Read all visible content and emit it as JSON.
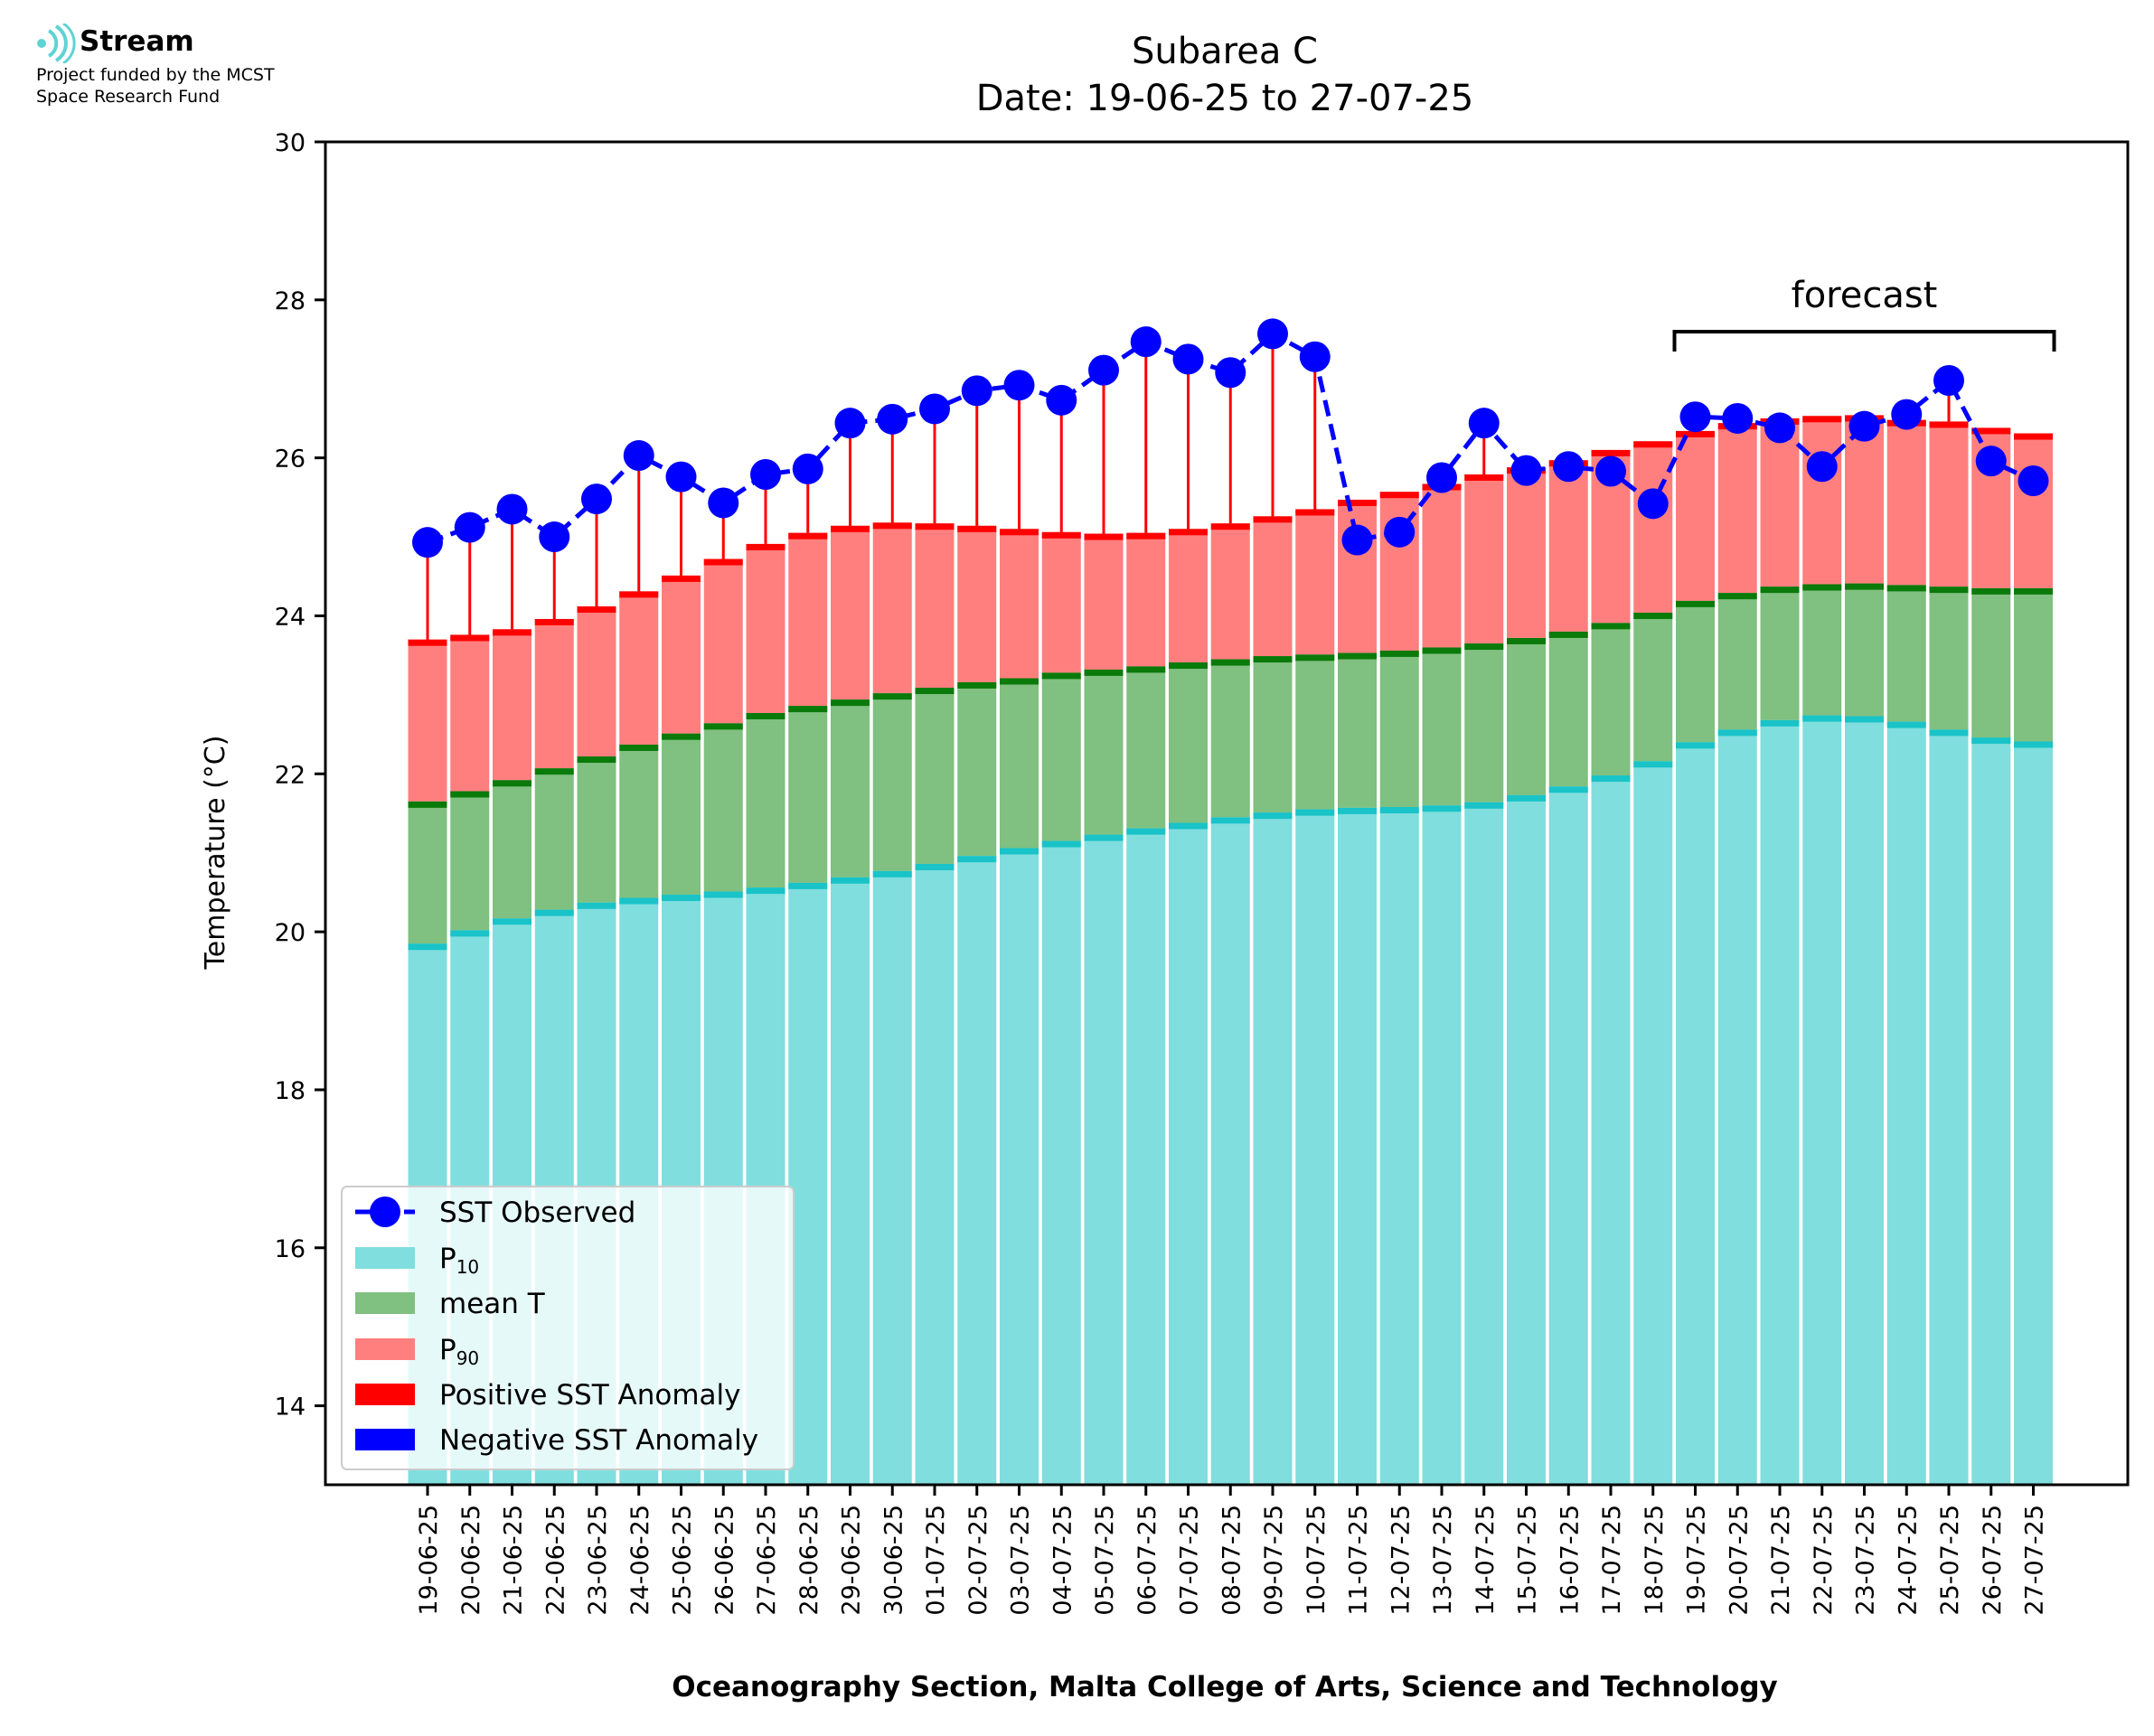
{
  "logo": {
    "name": "Stream",
    "line1": "Project funded by the MCST",
    "line2": "Space Research Fund",
    "icon": "stream-waves-icon"
  },
  "colors": {
    "p10": "#80dede",
    "p10_cap": "#19c3c8",
    "mean": "#80c080",
    "mean_cap": "#0a7a0a",
    "p90": "#ff7f7f",
    "p90_cap": "#ff0000",
    "positive_anomaly": "#ff0000",
    "negative_anomaly": "#0000ff",
    "sst": "#0000ff"
  },
  "chart_data": {
    "type": "bar",
    "title": "Subarea C",
    "subtitle": "Date: 19-06-25 to 27-07-25",
    "xlabel": "Oceanography Section, Malta College of Arts, Science and Technology",
    "ylabel": "Temperature (°C)",
    "ylim": [
      13,
      30
    ],
    "yticks": [
      14,
      16,
      18,
      20,
      22,
      24,
      26,
      28,
      30
    ],
    "grid": false,
    "legend_position": "lower-left",
    "categories": [
      "19-06-25",
      "20-06-25",
      "21-06-25",
      "22-06-25",
      "23-06-25",
      "24-06-25",
      "25-06-25",
      "26-06-25",
      "27-06-25",
      "28-06-25",
      "29-06-25",
      "30-06-25",
      "01-07-25",
      "02-07-25",
      "03-07-25",
      "04-07-25",
      "05-07-25",
      "06-07-25",
      "07-07-25",
      "08-07-25",
      "09-07-25",
      "10-07-25",
      "11-07-25",
      "12-07-25",
      "13-07-25",
      "14-07-25",
      "15-07-25",
      "16-07-25",
      "17-07-25",
      "18-07-25",
      "19-07-25",
      "20-07-25",
      "21-07-25",
      "22-07-25",
      "23-07-25",
      "24-07-25",
      "25-07-25",
      "26-07-25",
      "27-07-25"
    ],
    "series": [
      {
        "name": "P10",
        "values": [
          19.85,
          20.02,
          20.17,
          20.28,
          20.37,
          20.43,
          20.47,
          20.51,
          20.56,
          20.62,
          20.69,
          20.77,
          20.86,
          20.96,
          21.06,
          21.15,
          21.23,
          21.31,
          21.38,
          21.45,
          21.51,
          21.55,
          21.57,
          21.58,
          21.6,
          21.64,
          21.73,
          21.84,
          21.98,
          22.16,
          22.4,
          22.56,
          22.68,
          22.74,
          22.73,
          22.66,
          22.56,
          22.46,
          22.41
        ]
      },
      {
        "name": "mean T",
        "values": [
          21.65,
          21.78,
          21.92,
          22.07,
          22.22,
          22.37,
          22.51,
          22.64,
          22.77,
          22.86,
          22.94,
          23.02,
          23.09,
          23.16,
          23.21,
          23.28,
          23.32,
          23.36,
          23.41,
          23.45,
          23.49,
          23.51,
          23.53,
          23.56,
          23.6,
          23.65,
          23.72,
          23.8,
          23.91,
          24.04,
          24.19,
          24.29,
          24.37,
          24.4,
          24.41,
          24.39,
          24.37,
          24.35,
          24.35
        ]
      },
      {
        "name": "P90",
        "values": [
          23.7,
          23.76,
          23.83,
          23.96,
          24.12,
          24.31,
          24.51,
          24.72,
          24.91,
          25.05,
          25.14,
          25.18,
          25.17,
          25.14,
          25.1,
          25.06,
          25.04,
          25.05,
          25.1,
          25.17,
          25.26,
          25.35,
          25.47,
          25.57,
          25.67,
          25.79,
          25.88,
          25.97,
          26.1,
          26.21,
          26.34,
          26.44,
          26.5,
          26.53,
          26.54,
          26.48,
          26.46,
          26.38,
          26.31
        ]
      },
      {
        "name": "SST Observed",
        "values": [
          24.93,
          25.12,
          25.35,
          25.0,
          25.48,
          26.03,
          25.76,
          25.43,
          25.79,
          25.86,
          26.44,
          26.49,
          26.62,
          26.85,
          26.92,
          26.73,
          27.11,
          27.47,
          27.25,
          27.08,
          27.57,
          27.28,
          24.96,
          25.06,
          25.75,
          26.44,
          25.84,
          25.89,
          25.83,
          25.42,
          26.52,
          26.5,
          26.38,
          25.89,
          26.4,
          26.55,
          26.98,
          25.96,
          25.71
        ]
      }
    ],
    "annotation": {
      "text": "forecast",
      "from": "19-07-25",
      "to": "27-07-25"
    },
    "legend": [
      "SST Observed",
      "P10",
      "mean T",
      "P90",
      "Positive SST Anomaly",
      "Negative SST Anomaly"
    ]
  }
}
